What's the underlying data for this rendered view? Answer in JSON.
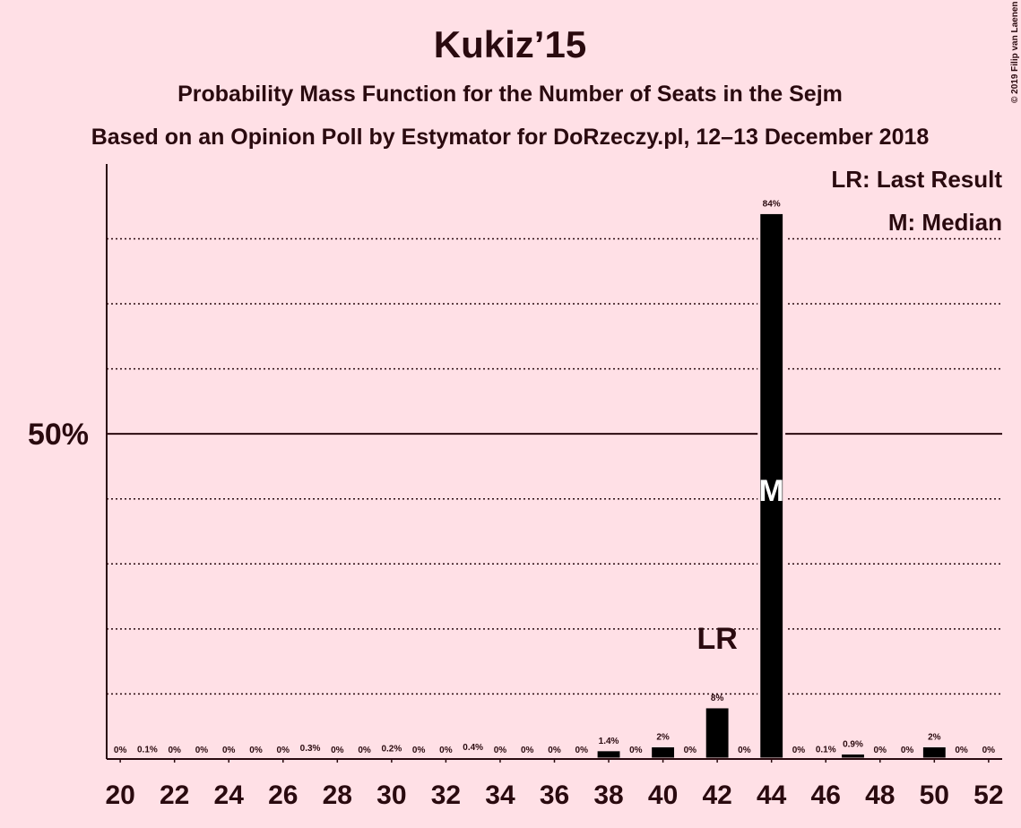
{
  "chart_data": {
    "type": "bar",
    "title": "Kukiz’15",
    "subtitle": "Probability Mass Function for the Number of Seats in the Sejm",
    "subtitle2": "Based on an Opinion Poll by Estymator for DoRzeczy.pl, 12–13 December 2018",
    "credit": "© 2019 Filip van Laenen",
    "x": [
      20,
      21,
      22,
      23,
      24,
      25,
      26,
      27,
      28,
      29,
      30,
      31,
      32,
      33,
      34,
      35,
      36,
      37,
      38,
      39,
      40,
      41,
      42,
      43,
      44,
      45,
      46,
      47,
      48,
      49,
      50,
      51,
      52
    ],
    "values": [
      0,
      0.1,
      0,
      0,
      0,
      0,
      0,
      0.3,
      0,
      0,
      0.2,
      0,
      0,
      0.4,
      0,
      0,
      0,
      0,
      1.4,
      0,
      2,
      0,
      8,
      0,
      84,
      0,
      0.1,
      0.9,
      0,
      0,
      2,
      0,
      0
    ],
    "value_labels": [
      "0%",
      "0.1%",
      "0%",
      "0%",
      "0%",
      "0%",
      "0%",
      "0.3%",
      "0%",
      "0%",
      "0.2%",
      "0%",
      "0%",
      "0.4%",
      "0%",
      "0%",
      "0%",
      "0%",
      "1.4%",
      "0%",
      "2%",
      "0%",
      "8%",
      "0%",
      "84%",
      "0%",
      "0.1%",
      "0.9%",
      "0%",
      "0%",
      "2%",
      "0%",
      "0%"
    ],
    "color": "#000000",
    "xlim": [
      19.5,
      52.5
    ],
    "xticks": [
      20,
      22,
      24,
      26,
      28,
      30,
      32,
      34,
      36,
      38,
      40,
      42,
      44,
      46,
      48,
      50,
      52
    ],
    "ylim": [
      0,
      91.5
    ],
    "yticks": [
      {
        "value": 50,
        "label": "50%"
      }
    ],
    "minor_yticks": [
      10,
      20,
      30,
      40,
      60,
      70,
      80
    ],
    "grid": true,
    "annotations": [
      {
        "text": "LR",
        "x": 42
      },
      {
        "text": "M",
        "x": 44
      }
    ],
    "legend": [
      "LR: Last Result",
      "M: Median"
    ]
  }
}
